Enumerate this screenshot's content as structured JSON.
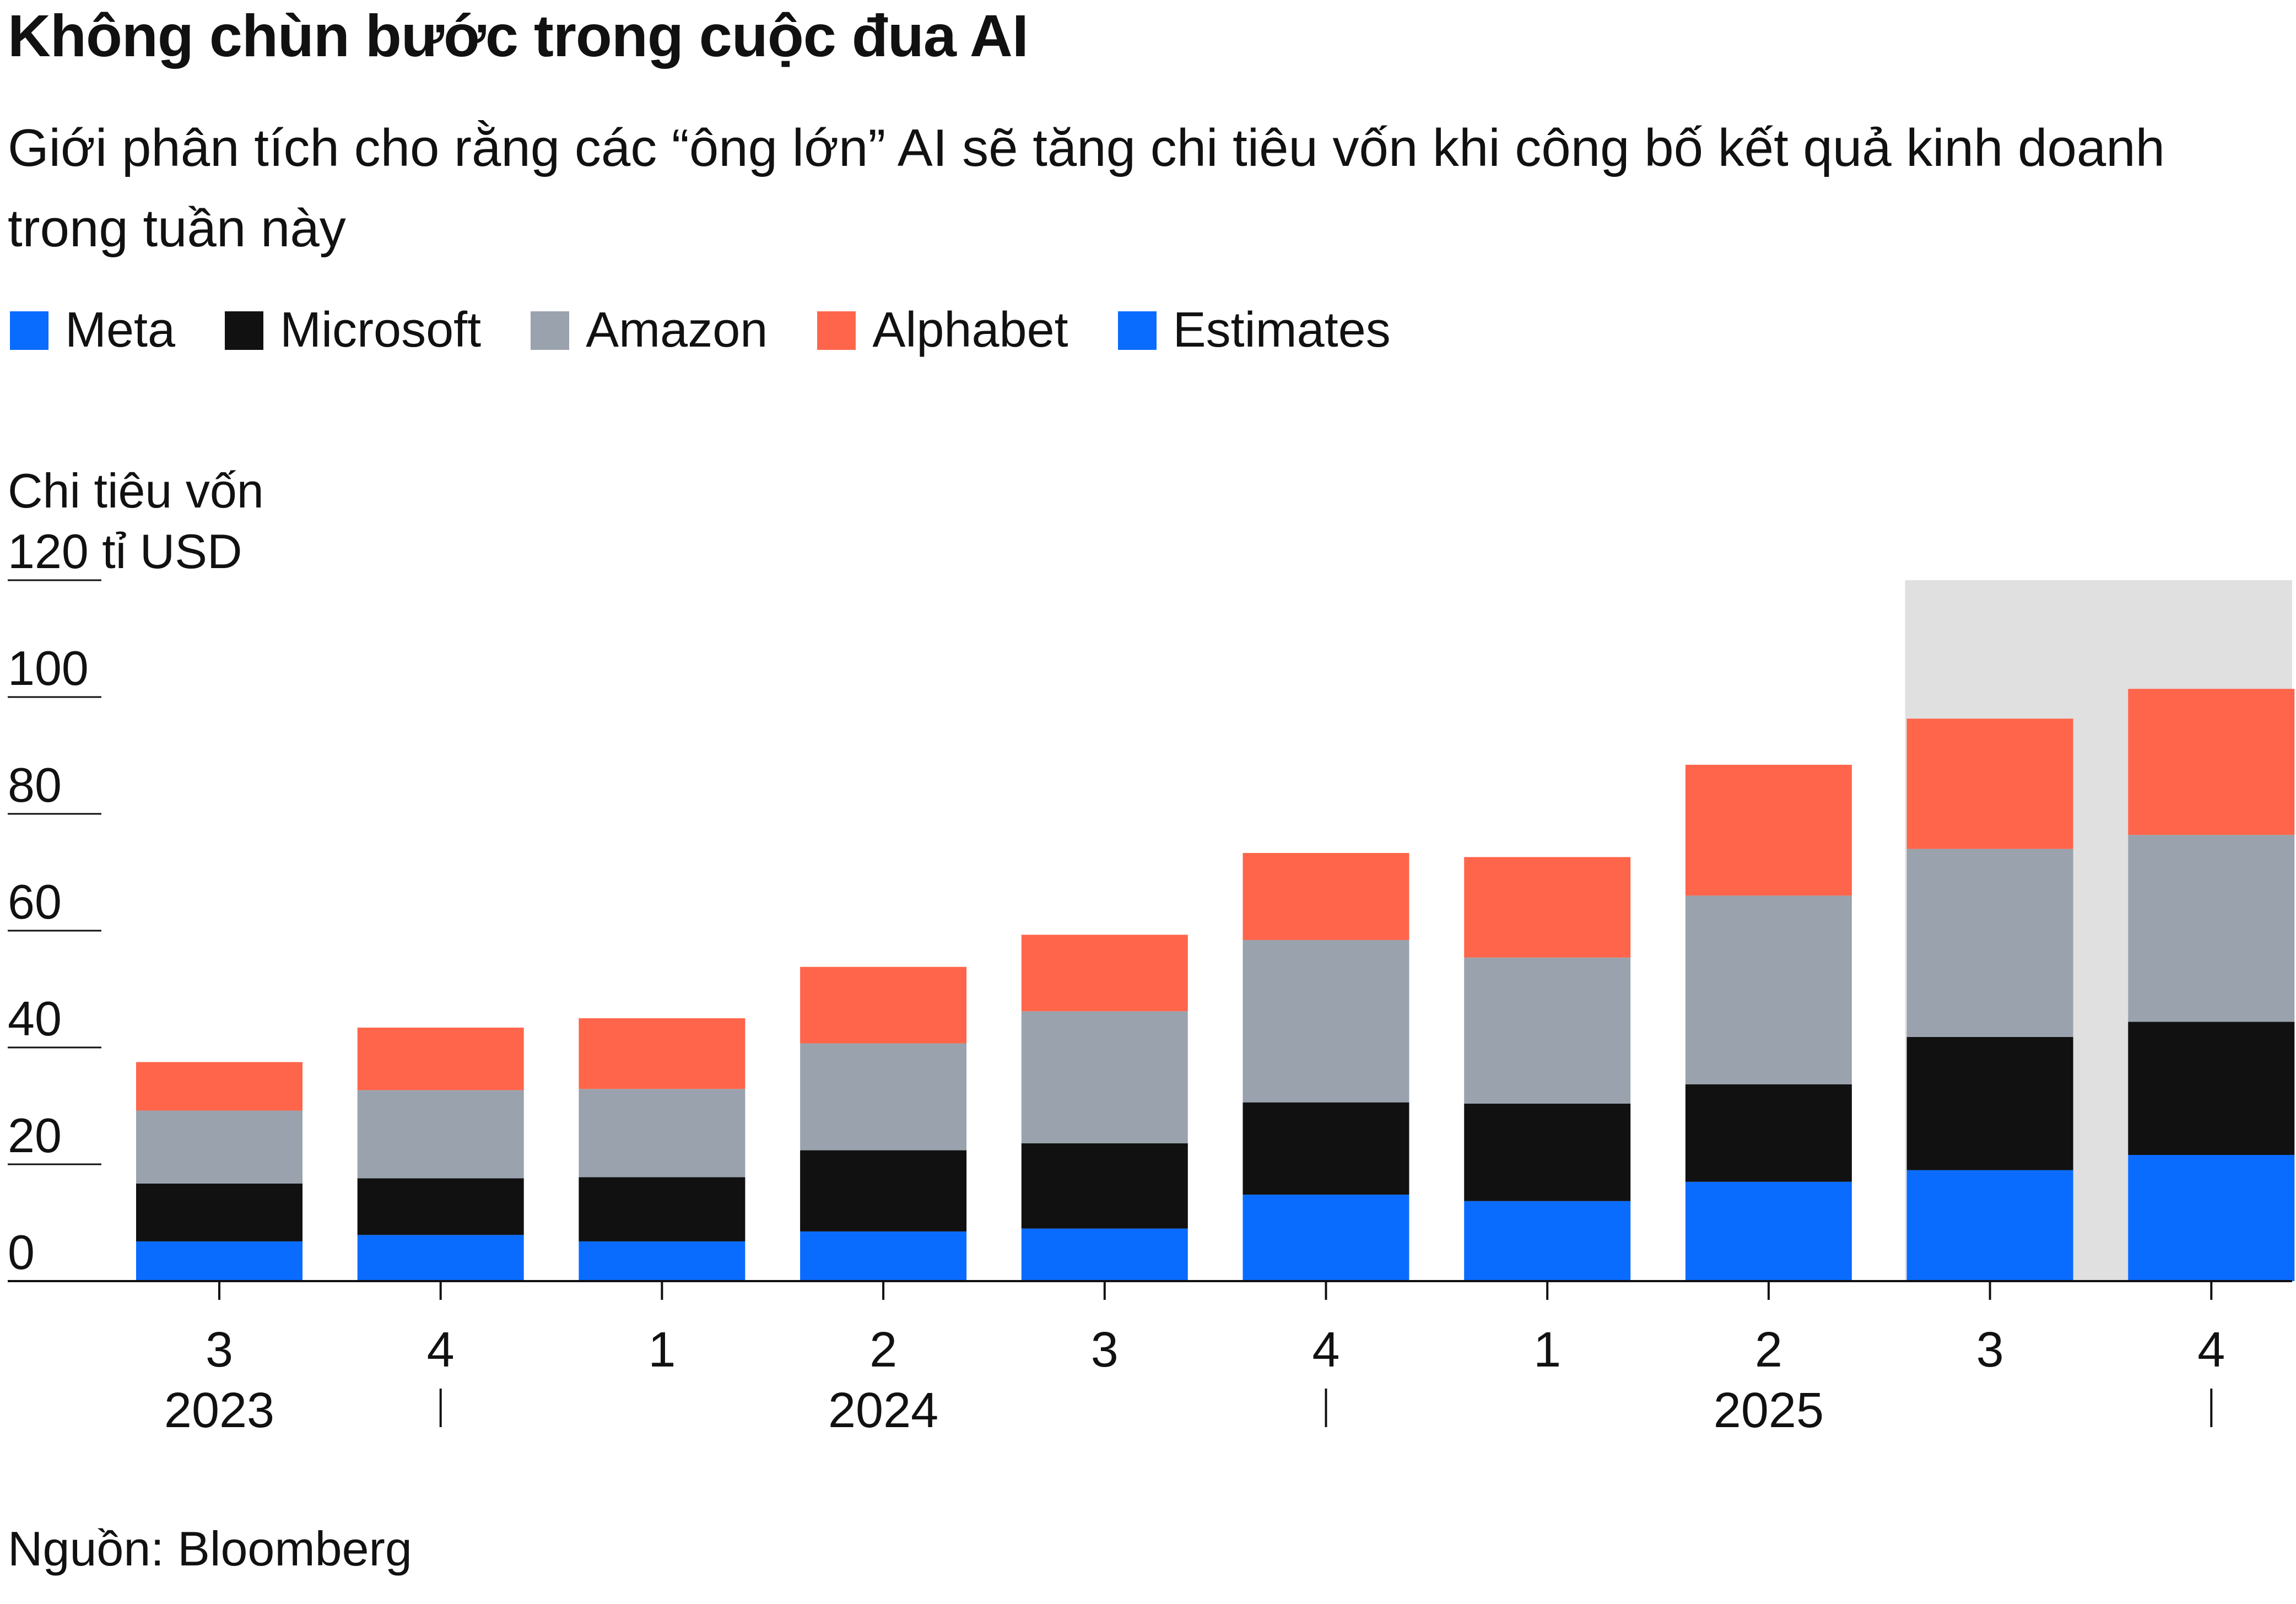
{
  "title": "Không chùn bước trong cuộc đua AI",
  "subtitle": "Giới phân tích cho rằng các “ông lớn” AI sẽ tăng chi tiêu vốn khi công bố kết quả kinh doanh trong tuần này",
  "source": "Nguồn: Bloomberg",
  "legend": [
    {
      "label": "Meta",
      "color": "#0a6cff"
    },
    {
      "label": "Microsoft",
      "color": "#111111"
    },
    {
      "label": "Amazon",
      "color": "#9aa3ad"
    },
    {
      "label": "Alphabet",
      "color": "#ff654b"
    },
    {
      "label": "Estimates",
      "color": "#0a6cff"
    }
  ],
  "chart_data": {
    "type": "bar",
    "stacked": true,
    "title": "Không chùn bước trong cuộc đua AI",
    "ylabel": "Chi tiêu vốn",
    "yunit_label": "120 tỉ USD",
    "ylim": [
      0,
      120
    ],
    "yticks": [
      "0",
      "20",
      "40",
      "60",
      "80",
      "100"
    ],
    "categories": [
      "3",
      "4",
      "1",
      "2",
      "3",
      "4",
      "1",
      "2",
      "3",
      "4"
    ],
    "year_labels": [
      {
        "label": "2023",
        "at": 0
      },
      {
        "label": "2024",
        "at": 3
      },
      {
        "label": "2025",
        "at": 7
      }
    ],
    "year_dividers": [
      1,
      5,
      9
    ],
    "estimate_start_index": 8,
    "estimate_shade_color": "#e0e0e0",
    "series": [
      {
        "name": "Meta",
        "color": "#0a6cff",
        "values": [
          6.8,
          7.9,
          6.8,
          8.5,
          9.0,
          14.8,
          13.7,
          17.0,
          19.0,
          21.6
        ]
      },
      {
        "name": "Microsoft",
        "color": "#111111",
        "values": [
          9.9,
          9.7,
          11.0,
          13.9,
          14.6,
          15.8,
          16.7,
          16.7,
          22.8,
          22.8
        ]
      },
      {
        "name": "Amazon",
        "color": "#9aa3ad",
        "values": [
          12.5,
          15.1,
          15.1,
          18.3,
          22.6,
          27.8,
          25.0,
          32.3,
          32.2,
          32.0
        ]
      },
      {
        "name": "Alphabet",
        "color": "#ff654b",
        "values": [
          8.3,
          10.7,
          12.1,
          13.1,
          13.1,
          14.9,
          17.2,
          22.4,
          22.3,
          25.0
        ]
      }
    ]
  }
}
